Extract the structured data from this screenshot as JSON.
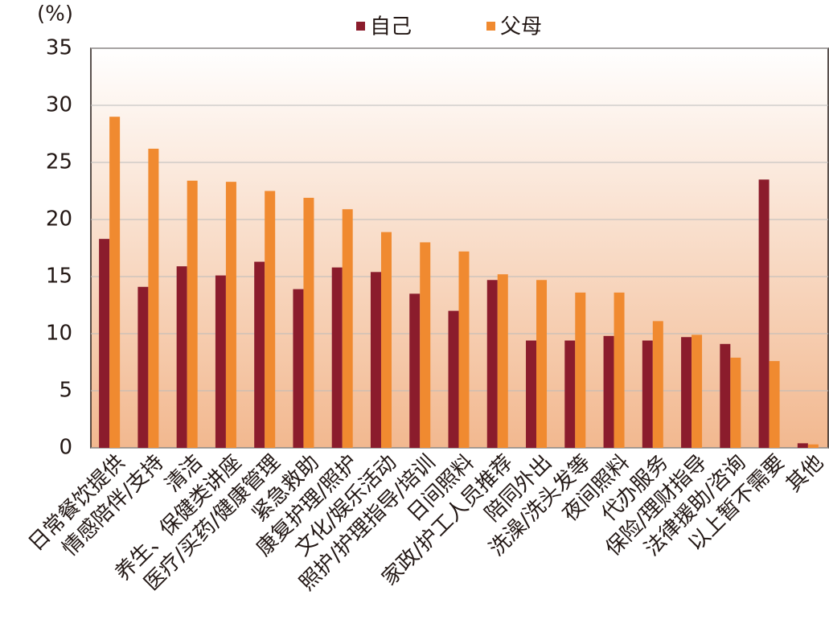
{
  "chart_data": {
    "type": "bar",
    "y_label": "(%)",
    "categories": [
      "日常餐饮提供",
      "情感陪伴/支持",
      "清洁",
      "养生、保健类讲座",
      "医疗/买药/健康管理",
      "紧急救助",
      "康复护理/照护",
      "文化/娱乐活动",
      "照护/护理指导/培训",
      "日间照料",
      "家政/护工人员推荐",
      "陪同外出",
      "洗澡/洗头发等",
      "夜间照料",
      "代办服务",
      "保险/理财指导",
      "法律援助/咨询",
      "以上暂不需要",
      "其他"
    ],
    "series": [
      {
        "name": "自己",
        "color": "#8b1c2c",
        "values": [
          18.3,
          14.1,
          15.9,
          15.1,
          16.3,
          13.9,
          15.8,
          15.4,
          13.5,
          12.0,
          14.7,
          9.4,
          9.4,
          9.8,
          9.4,
          9.7,
          9.1,
          23.5,
          0.4
        ]
      },
      {
        "name": "父母",
        "color": "#f08a30",
        "values": [
          29.0,
          26.2,
          23.4,
          23.3,
          22.5,
          21.9,
          20.9,
          18.9,
          18.0,
          17.2,
          15.2,
          14.7,
          13.6,
          13.6,
          11.1,
          9.9,
          7.9,
          7.6,
          0.3
        ]
      }
    ],
    "ylim": [
      0,
      35
    ],
    "yticks": [
      0,
      5,
      10,
      15,
      20,
      25,
      30,
      35
    ],
    "grid": true
  }
}
